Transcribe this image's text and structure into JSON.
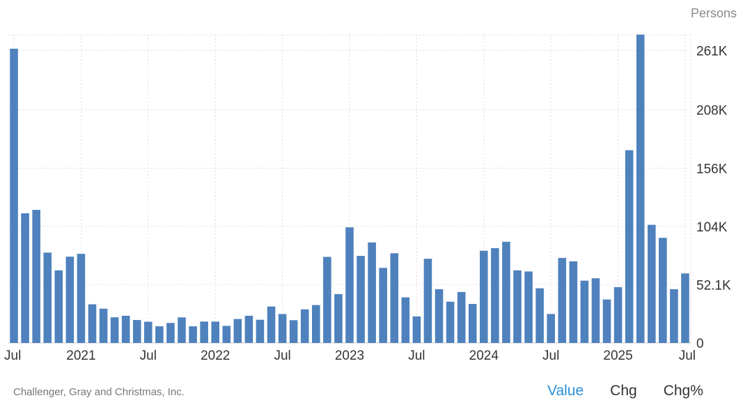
{
  "unit_label": "Persons",
  "source": "Challenger, Gray and Christmas, Inc.",
  "tabs": [
    {
      "label": "Value",
      "active": true
    },
    {
      "label": "Chg",
      "active": false
    },
    {
      "label": "Chg%",
      "active": false
    }
  ],
  "colors": {
    "bar": "#4f81bd",
    "grid": "#dddddd",
    "active_tab": "#2b8fd6"
  },
  "chart_data": {
    "type": "bar",
    "title": "",
    "xlabel": "",
    "ylabel": "",
    "ylim": [
      0,
      275000
    ],
    "grid": true,
    "y_ticks": [
      0,
      52100,
      104000,
      156000,
      208000,
      261000
    ],
    "y_tick_labels": [
      "0",
      "52.1K",
      "104K",
      "156K",
      "208K",
      "261K"
    ],
    "x_tick_labels": [
      {
        "index": 0,
        "label": "Jul"
      },
      {
        "index": 6,
        "label": "2021"
      },
      {
        "index": 12,
        "label": "Jul"
      },
      {
        "index": 18,
        "label": "2022"
      },
      {
        "index": 24,
        "label": "Jul"
      },
      {
        "index": 30,
        "label": "2023"
      },
      {
        "index": 36,
        "label": "Jul"
      },
      {
        "index": 42,
        "label": "2024"
      },
      {
        "index": 48,
        "label": "Jul"
      },
      {
        "index": 54,
        "label": "2025"
      },
      {
        "index": 60,
        "label": "Jul"
      }
    ],
    "categories": [
      "2020-07",
      "2020-08",
      "2020-09",
      "2020-10",
      "2020-11",
      "2020-12",
      "2021-01",
      "2021-02",
      "2021-03",
      "2021-04",
      "2021-05",
      "2021-06",
      "2021-07",
      "2021-08",
      "2021-09",
      "2021-10",
      "2021-11",
      "2021-12",
      "2022-01",
      "2022-02",
      "2022-03",
      "2022-04",
      "2022-05",
      "2022-06",
      "2022-07",
      "2022-08",
      "2022-09",
      "2022-10",
      "2022-11",
      "2022-12",
      "2023-01",
      "2023-02",
      "2023-03",
      "2023-04",
      "2023-05",
      "2023-06",
      "2023-07",
      "2023-08",
      "2023-09",
      "2023-10",
      "2023-11",
      "2023-12",
      "2024-01",
      "2024-02",
      "2024-03",
      "2024-04",
      "2024-05",
      "2024-06",
      "2024-07",
      "2024-08",
      "2024-09",
      "2024-10",
      "2024-11",
      "2024-12",
      "2025-01",
      "2025-02",
      "2025-03",
      "2025-04",
      "2025-05",
      "2025-06",
      "2025-07"
    ],
    "values": [
      262649,
      115762,
      118804,
      80666,
      64797,
      77030,
      79552,
      34531,
      30603,
      22913,
      24286,
      20476,
      18942,
      14875,
      17895,
      22822,
      14875,
      19100,
      19064,
      15245,
      21387,
      24286,
      20712,
      32517,
      25810,
      20335,
      29989,
      33843,
      76835,
      43651,
      103178,
      77770,
      89703,
      66995,
      80089,
      40709,
      23697,
      75151,
      47999,
      36836,
      45510,
      34817,
      82307,
      84638,
      90309,
      64789,
      63816,
      48786,
      25885,
      75891,
      72821,
      55597,
      57727,
      38792,
      49795,
      172017,
      275240,
      105441,
      93816,
      47999,
      62075
    ]
  }
}
